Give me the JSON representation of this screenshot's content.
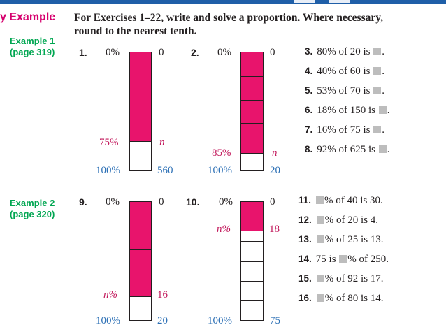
{
  "heading": "y Example",
  "instructions": [
    "For Exercises 1–22, write and solve a proportion. Where necessary,",
    "round to the nearest tenth."
  ],
  "example1": {
    "title": "Example 1",
    "page": "(page 319)"
  },
  "example2": {
    "title": "Example 2",
    "page": "(page 320)"
  },
  "bars": [
    {
      "number": "1.",
      "top_pct": "0%",
      "top_val": "0",
      "mid_pct": "75%",
      "mid_val": "n",
      "bot_pct": "100%",
      "bot_val": "560",
      "filled_fraction": 0.75,
      "segments": 4
    },
    {
      "number": "2.",
      "top_pct": "0%",
      "top_val": "0",
      "mid_pct": "85%",
      "mid_val": "n",
      "bot_pct": "100%",
      "bot_val": "20",
      "filled_fraction": 0.85,
      "segments": 5
    },
    {
      "number": "9.",
      "top_pct": "0%",
      "top_val": "0",
      "mid_pct": "n%",
      "mid_val": "16",
      "bot_pct": "100%",
      "bot_val": "20",
      "filled_fraction": 0.8,
      "segments": 5
    },
    {
      "number": "10.",
      "top_pct": "0%",
      "top_val": "0",
      "mid_pct": "n%",
      "mid_val": "18",
      "bot_pct": "100%",
      "bot_val": "75",
      "filled_fraction": 0.24,
      "segments": 6
    }
  ],
  "problems_a": [
    {
      "n": "3.",
      "pre": "80% of 20 is",
      "post": "."
    },
    {
      "n": "4.",
      "pre": "40% of 60 is",
      "post": "."
    },
    {
      "n": "5.",
      "pre": "53% of 70 is",
      "post": "."
    },
    {
      "n": "6.",
      "pre": "18% of 150 is",
      "post": "."
    },
    {
      "n": "7.",
      "pre": "16% of 75 is",
      "post": "."
    },
    {
      "n": "8.",
      "pre": "92% of 625 is",
      "post": "."
    }
  ],
  "problems_b": [
    {
      "n": "11.",
      "pre": "",
      "post": "% of 40 is 30."
    },
    {
      "n": "12.",
      "pre": "",
      "post": "% of 20 is 4."
    },
    {
      "n": "13.",
      "pre": "",
      "post": "% of 25 is 13."
    },
    {
      "n": "14.",
      "pre": "75 is",
      "post": "% of 250."
    },
    {
      "n": "15.",
      "pre": "",
      "post": "% of 92 is 17."
    },
    {
      "n": "16.",
      "pre": "",
      "post": "% of 80 is 14."
    }
  ]
}
